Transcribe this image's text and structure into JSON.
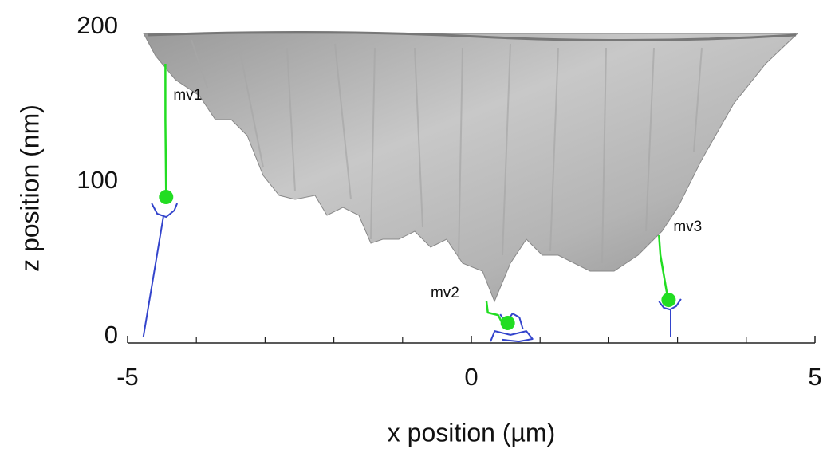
{
  "chart_data": {
    "type": "line",
    "xlabel": "x position (µm)",
    "ylabel": "z position (nm)",
    "xlim": [
      -5,
      5
    ],
    "xticks": [
      -5,
      0,
      5
    ],
    "xminorticks": [
      -4,
      -3,
      -2,
      -1,
      1,
      2,
      3,
      4
    ],
    "ylim": [
      0,
      200
    ],
    "yticks": [
      0,
      100,
      200
    ],
    "series": [
      {
        "name": "mv1",
        "color": "#22dd22",
        "x": [
          -4.45,
          -4.45,
          -4.44
        ],
        "values": [
          180.4,
          144.3,
          94.3
        ]
      },
      {
        "name": "mv2",
        "color": "#22dd22",
        "x": [
          0.22,
          0.24,
          0.39,
          0.45,
          0.53
        ],
        "values": [
          26.8,
          19.6,
          18.0,
          12.9,
          12.9
        ]
      },
      {
        "name": "mv3",
        "color": "#22dd22",
        "x": [
          2.73,
          2.75,
          2.8,
          2.84,
          2.87
        ],
        "values": [
          69.6,
          56.7,
          43.8,
          33.5,
          27.8
        ]
      }
    ],
    "traces": [
      {
        "color": "#3344cc",
        "x": [
          -4.65,
          -4.57,
          -4.44,
          -4.32,
          -4.28
        ],
        "values": [
          90.2,
          83.5,
          81.4,
          85.6,
          90.2
        ]
      },
      {
        "color": "#3344cc",
        "x": [
          -4.48,
          -4.77
        ],
        "values": [
          81.4,
          4.1
        ]
      },
      {
        "color": "#3344cc",
        "x": [
          2.73,
          2.8,
          2.89,
          2.98,
          3.05
        ],
        "values": [
          26.8,
          22.7,
          21.6,
          23.7,
          28.4
        ]
      },
      {
        "color": "#3344cc",
        "x": [
          2.9,
          2.9
        ],
        "values": [
          21.6,
          4.1
        ]
      },
      {
        "color": "#3344cc",
        "x": [
          0.28,
          0.34,
          0.57,
          0.8,
          0.89,
          0.69,
          0.45
        ],
        "values": [
          1.0,
          7.7,
          5.2,
          7.7,
          2.6,
          1.0,
          2.1
        ]
      },
      {
        "color": "#3344cc",
        "x": [
          0.42,
          0.5,
          0.6,
          0.7,
          0.75
        ],
        "values": [
          18.5,
          13.0,
          19.0,
          16.5,
          9.0
        ]
      }
    ]
  }
}
